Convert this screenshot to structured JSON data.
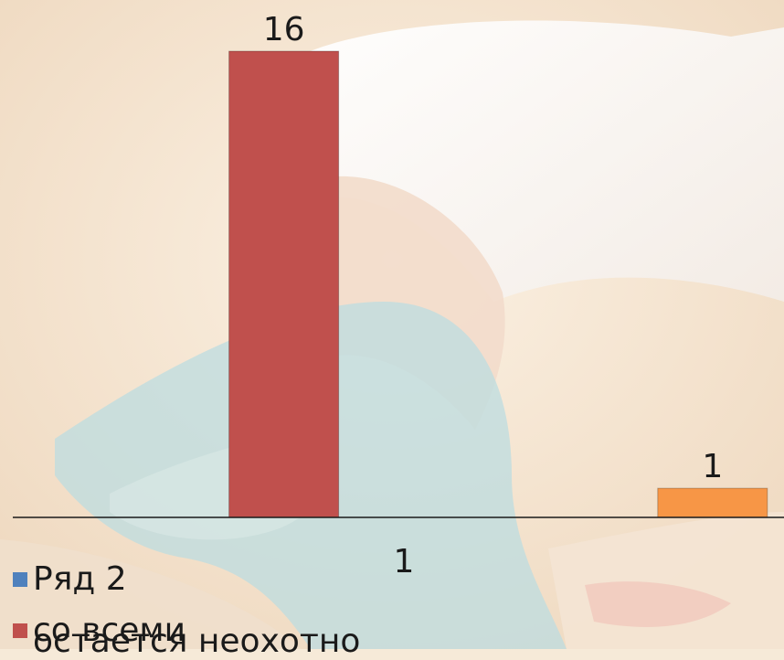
{
  "chart_data": {
    "type": "bar",
    "categories": [
      "1"
    ],
    "series": [
      {
        "name": "Ряд 2",
        "values": [
          0
        ],
        "color": "#4f81bd"
      },
      {
        "name": "со всеми",
        "values": [
          16
        ],
        "color": "#c0504d"
      },
      {
        "name": "",
        "values": [
          0
        ],
        "color": "#9bbb59"
      },
      {
        "name": "",
        "values": [
          0
        ],
        "color": "#8064a2"
      },
      {
        "name": "",
        "values": [
          1
        ],
        "color": "#f79646"
      }
    ],
    "data_labels": [
      "",
      "16",
      "",
      "",
      "1"
    ],
    "ylim": [
      0,
      16
    ],
    "grid": false,
    "legend_position": "bottom-left"
  },
  "legend": {
    "item_1": "Ряд 2",
    "item_2": "со всеми",
    "item_2_overlap": "остается неохотно"
  },
  "colors": {
    "axis": "#1a1a1a",
    "background": "#f6ead8"
  }
}
